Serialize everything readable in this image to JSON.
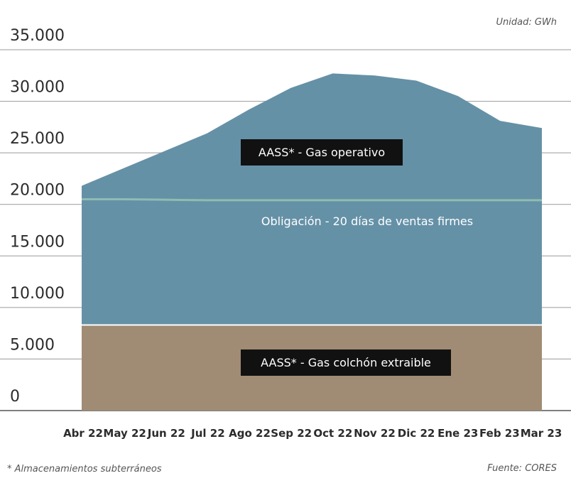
{
  "chart_data": {
    "type": "area",
    "unit_note": "Unidad: GWh",
    "source_note": "Fuente: CORES",
    "footnote": "* Almacenamientos subterráneos",
    "categories": [
      "Abr 22",
      "May 22",
      "Jun 22",
      "Jul 22",
      "Ago 22",
      "Sep 22",
      "Oct 22",
      "Nov 22",
      "Dic 22",
      "Ene 23",
      "Feb 23",
      "Mar 23"
    ],
    "ylim": [
      0,
      35000
    ],
    "yticks": [
      0,
      5000,
      10000,
      15000,
      20000,
      25000,
      30000,
      35000
    ],
    "ytick_labels": [
      "0",
      "5.000",
      "10.000",
      "15.000",
      "20.000",
      "25.000",
      "30.000",
      "35.000"
    ],
    "grid": true,
    "series": [
      {
        "name": "AASS* - Gas colchón extraible",
        "color": "#a08b74",
        "values": [
          8300,
          8300,
          8300,
          8300,
          8300,
          8300,
          8300,
          8300,
          8300,
          8300,
          8300,
          8300
        ]
      },
      {
        "name": "AASS* - Gas operativo",
        "color": "#6591a7",
        "values": [
          21800,
          23500,
          25200,
          26900,
          29200,
          31300,
          32700,
          32500,
          32000,
          30500,
          28100,
          27400
        ]
      }
    ],
    "obligation_line": {
      "name": "Obligación - 20 días de ventas firmes",
      "color": "#8fbcb0",
      "values": [
        20500,
        20500,
        20450,
        20400,
        20400,
        20400,
        20400,
        20400,
        20400,
        20400,
        20400,
        20400
      ]
    }
  }
}
